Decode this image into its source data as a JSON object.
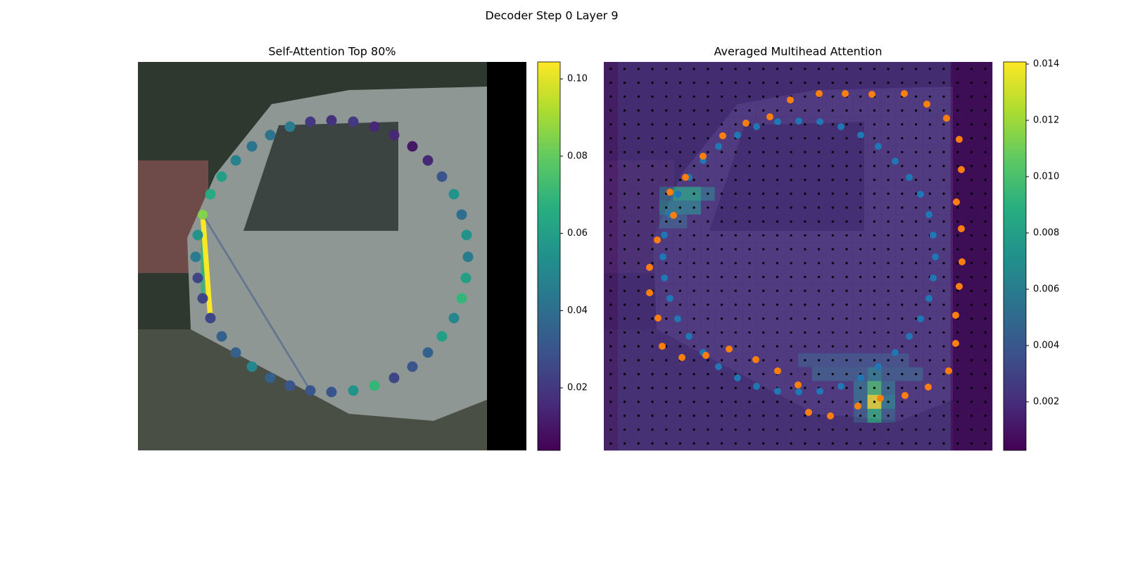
{
  "title": "Decoder Step 0 Layer 9",
  "chart_data": [
    {
      "type": "scatter",
      "title": "Self-Attention Top 80%",
      "xlim": [
        0,
        552
      ],
      "ylim": [
        552,
        0
      ],
      "x": [
        92,
        103,
        119,
        139,
        162,
        188,
        216,
        245,
        275,
        306,
        336,
        364,
        390,
        412,
        432,
        449,
        460,
        467,
        469,
        466,
        460,
        449,
        432,
        412,
        390,
        364,
        336,
        306,
        275,
        245,
        216,
        188,
        162,
        139,
        119,
        103,
        92,
        85,
        82,
        85
      ],
      "y": [
        217,
        188,
        163,
        140,
        120,
        104,
        92,
        85,
        83,
        85,
        92,
        104,
        120,
        140,
        163,
        188,
        217,
        246,
        277,
        307,
        336,
        364,
        390,
        413,
        433,
        449,
        460,
        467,
        469,
        467,
        460,
        449,
        433,
        413,
        390,
        364,
        336,
        307,
        277,
        246
      ],
      "values": [
        0.085,
        0.065,
        0.06,
        0.048,
        0.042,
        0.042,
        0.045,
        0.02,
        0.018,
        0.02,
        0.015,
        0.015,
        0.01,
        0.015,
        0.03,
        0.055,
        0.04,
        0.055,
        0.045,
        0.06,
        0.07,
        0.05,
        0.06,
        0.035,
        0.03,
        0.025,
        0.07,
        0.055,
        0.03,
        0.03,
        0.03,
        0.035,
        0.05,
        0.035,
        0.035,
        0.025,
        0.025,
        0.025,
        0.045,
        0.055
      ],
      "lines": {
        "from": 0,
        "to": [
          36,
          35,
          29
        ],
        "values": [
          0.07,
          0.104,
          0.03
        ]
      },
      "colorbar_lim": [
        0.0038,
        0.1044
      ],
      "colorbar_ticks": [
        0.02,
        0.04,
        0.06,
        0.08,
        {
          "value": 0.1,
          "label": "0.10"
        }
      ]
    },
    {
      "type": "heatmap",
      "title": "Averaged Multihead Attention",
      "xlim": [
        0,
        552
      ],
      "ylim": [
        552,
        0
      ],
      "matrix": [
        [
          0.0012,
          0.002,
          0.002,
          0.002,
          0.002,
          0.002,
          0.002,
          0.002,
          0.002,
          0.002,
          0.002,
          0.002,
          0.002,
          0.002,
          0.002,
          0.002,
          0.002,
          0.002,
          0.002,
          0.002,
          0.002,
          0.002,
          0.002,
          0.002,
          0.002,
          0.0006,
          0.0006,
          0.0006
        ],
        [
          0.0012,
          0.002,
          0.002,
          0.002,
          0.002,
          0.002,
          0.002,
          0.002,
          0.002,
          0.002,
          0.002,
          0.002,
          0.002,
          0.002,
          0.002,
          0.002,
          0.002,
          0.002,
          0.002,
          0.002,
          0.002,
          0.002,
          0.002,
          0.002,
          0.002,
          0.0006,
          0.0006,
          0.0006
        ],
        [
          0.0012,
          0.002,
          0.002,
          0.002,
          0.002,
          0.002,
          0.002,
          0.002,
          0.002,
          0.002,
          0.002,
          0.002,
          0.002,
          0.002,
          0.002,
          0.002,
          0.002,
          0.002,
          0.002,
          0.002,
          0.002,
          0.002,
          0.002,
          0.002,
          0.002,
          0.0006,
          0.0006,
          0.0006
        ],
        [
          0.0012,
          0.002,
          0.002,
          0.002,
          0.002,
          0.002,
          0.002,
          0.002,
          0.002,
          0.002,
          0.002,
          0.002,
          0.002,
          0.002,
          0.002,
          0.002,
          0.002,
          0.002,
          0.002,
          0.002,
          0.002,
          0.002,
          0.002,
          0.002,
          0.002,
          0.0006,
          0.0006,
          0.0006
        ],
        [
          0.0012,
          0.002,
          0.002,
          0.002,
          0.002,
          0.002,
          0.002,
          0.002,
          0.002,
          0.002,
          0.002,
          0.002,
          0.002,
          0.002,
          0.002,
          0.002,
          0.002,
          0.002,
          0.002,
          0.002,
          0.002,
          0.002,
          0.002,
          0.002,
          0.002,
          0.0006,
          0.0006,
          0.0006
        ],
        [
          0.0012,
          0.002,
          0.002,
          0.002,
          0.002,
          0.002,
          0.002,
          0.002,
          0.002,
          0.002,
          0.002,
          0.002,
          0.002,
          0.002,
          0.002,
          0.002,
          0.002,
          0.002,
          0.002,
          0.002,
          0.002,
          0.002,
          0.002,
          0.002,
          0.002,
          0.0006,
          0.0006,
          0.0006
        ],
        [
          0.0012,
          0.002,
          0.002,
          0.002,
          0.002,
          0.002,
          0.002,
          0.002,
          0.002,
          0.002,
          0.002,
          0.002,
          0.002,
          0.002,
          0.002,
          0.002,
          0.002,
          0.002,
          0.002,
          0.002,
          0.002,
          0.002,
          0.002,
          0.002,
          0.002,
          0.0006,
          0.0006,
          0.0006
        ],
        [
          0.0012,
          0.002,
          0.002,
          0.002,
          0.002,
          0.002,
          0.002,
          0.002,
          0.002,
          0.002,
          0.002,
          0.002,
          0.002,
          0.002,
          0.002,
          0.002,
          0.002,
          0.002,
          0.002,
          0.002,
          0.002,
          0.002,
          0.002,
          0.002,
          0.002,
          0.0006,
          0.0006,
          0.0006
        ],
        [
          0.0012,
          0.002,
          0.002,
          0.002,
          0.002,
          0.002,
          0.002,
          0.002,
          0.002,
          0.002,
          0.002,
          0.002,
          0.002,
          0.002,
          0.002,
          0.002,
          0.002,
          0.002,
          0.002,
          0.002,
          0.002,
          0.002,
          0.002,
          0.002,
          0.002,
          0.0006,
          0.0006,
          0.0006
        ],
        [
          0.0012,
          0.002,
          0.002,
          0.002,
          0.005,
          0.008,
          0.008,
          0.005,
          0.002,
          0.002,
          0.002,
          0.002,
          0.002,
          0.002,
          0.002,
          0.002,
          0.002,
          0.002,
          0.002,
          0.002,
          0.002,
          0.002,
          0.002,
          0.002,
          0.002,
          0.0006,
          0.0006,
          0.0006
        ],
        [
          0.0012,
          0.002,
          0.002,
          0.002,
          0.006,
          0.006,
          0.006,
          0.002,
          0.002,
          0.002,
          0.002,
          0.002,
          0.002,
          0.002,
          0.002,
          0.002,
          0.002,
          0.002,
          0.002,
          0.002,
          0.002,
          0.002,
          0.002,
          0.002,
          0.002,
          0.0006,
          0.0006,
          0.0006
        ],
        [
          0.0012,
          0.002,
          0.002,
          0.002,
          0.004,
          0.004,
          0.002,
          0.002,
          0.002,
          0.002,
          0.002,
          0.002,
          0.002,
          0.002,
          0.002,
          0.002,
          0.002,
          0.002,
          0.002,
          0.002,
          0.002,
          0.002,
          0.002,
          0.002,
          0.002,
          0.0006,
          0.0006,
          0.0006
        ],
        [
          0.0012,
          0.002,
          0.002,
          0.002,
          0.002,
          0.002,
          0.002,
          0.002,
          0.002,
          0.002,
          0.002,
          0.002,
          0.002,
          0.002,
          0.002,
          0.002,
          0.002,
          0.002,
          0.002,
          0.002,
          0.002,
          0.002,
          0.002,
          0.002,
          0.002,
          0.0006,
          0.0006,
          0.0006
        ],
        [
          0.0012,
          0.002,
          0.002,
          0.002,
          0.002,
          0.002,
          0.002,
          0.002,
          0.002,
          0.002,
          0.002,
          0.002,
          0.002,
          0.002,
          0.002,
          0.002,
          0.002,
          0.002,
          0.002,
          0.002,
          0.002,
          0.002,
          0.002,
          0.002,
          0.002,
          0.0006,
          0.0006,
          0.0006
        ],
        [
          0.0012,
          0.002,
          0.002,
          0.002,
          0.002,
          0.002,
          0.002,
          0.002,
          0.002,
          0.002,
          0.002,
          0.002,
          0.002,
          0.002,
          0.002,
          0.002,
          0.002,
          0.002,
          0.002,
          0.002,
          0.002,
          0.002,
          0.002,
          0.002,
          0.002,
          0.0006,
          0.0006,
          0.0006
        ],
        [
          0.0012,
          0.002,
          0.002,
          0.002,
          0.002,
          0.002,
          0.002,
          0.002,
          0.002,
          0.002,
          0.002,
          0.002,
          0.002,
          0.002,
          0.002,
          0.002,
          0.002,
          0.002,
          0.002,
          0.002,
          0.002,
          0.002,
          0.002,
          0.002,
          0.002,
          0.0006,
          0.0006,
          0.0006
        ],
        [
          0.0012,
          0.002,
          0.002,
          0.002,
          0.002,
          0.002,
          0.002,
          0.002,
          0.002,
          0.002,
          0.002,
          0.002,
          0.002,
          0.002,
          0.002,
          0.002,
          0.002,
          0.002,
          0.002,
          0.002,
          0.002,
          0.002,
          0.002,
          0.002,
          0.002,
          0.0006,
          0.0006,
          0.0006
        ],
        [
          0.0012,
          0.002,
          0.002,
          0.002,
          0.002,
          0.002,
          0.002,
          0.002,
          0.002,
          0.002,
          0.002,
          0.002,
          0.002,
          0.002,
          0.002,
          0.002,
          0.002,
          0.002,
          0.002,
          0.002,
          0.002,
          0.002,
          0.002,
          0.002,
          0.002,
          0.0006,
          0.0006,
          0.0006
        ],
        [
          0.0012,
          0.002,
          0.002,
          0.002,
          0.002,
          0.002,
          0.002,
          0.002,
          0.002,
          0.002,
          0.002,
          0.002,
          0.002,
          0.002,
          0.002,
          0.002,
          0.002,
          0.002,
          0.002,
          0.002,
          0.002,
          0.002,
          0.002,
          0.002,
          0.002,
          0.0006,
          0.0006,
          0.0006
        ],
        [
          0.0012,
          0.002,
          0.002,
          0.002,
          0.002,
          0.002,
          0.002,
          0.002,
          0.002,
          0.002,
          0.002,
          0.002,
          0.002,
          0.002,
          0.002,
          0.002,
          0.002,
          0.002,
          0.002,
          0.002,
          0.002,
          0.002,
          0.002,
          0.002,
          0.002,
          0.0006,
          0.0006,
          0.0006
        ],
        [
          0.0012,
          0.002,
          0.002,
          0.002,
          0.002,
          0.002,
          0.002,
          0.002,
          0.002,
          0.002,
          0.002,
          0.002,
          0.002,
          0.002,
          0.002,
          0.002,
          0.002,
          0.002,
          0.002,
          0.002,
          0.002,
          0.002,
          0.002,
          0.002,
          0.002,
          0.0006,
          0.0006,
          0.0006
        ],
        [
          0.0012,
          0.002,
          0.002,
          0.002,
          0.002,
          0.002,
          0.002,
          0.002,
          0.002,
          0.002,
          0.002,
          0.002,
          0.002,
          0.002,
          0.0035,
          0.0035,
          0.0035,
          0.0035,
          0.0035,
          0.0035,
          0.0035,
          0.0035,
          0.002,
          0.002,
          0.002,
          0.0006,
          0.0006,
          0.0006
        ],
        [
          0.0012,
          0.002,
          0.002,
          0.002,
          0.002,
          0.002,
          0.002,
          0.002,
          0.002,
          0.002,
          0.002,
          0.002,
          0.002,
          0.002,
          0.002,
          0.004,
          0.004,
          0.004,
          0.004,
          0.006,
          0.004,
          0.004,
          0.004,
          0.002,
          0.002,
          0.0006,
          0.0006,
          0.0006
        ],
        [
          0.0012,
          0.002,
          0.002,
          0.002,
          0.002,
          0.002,
          0.002,
          0.002,
          0.002,
          0.002,
          0.002,
          0.002,
          0.002,
          0.002,
          0.002,
          0.002,
          0.002,
          0.002,
          0.005,
          0.01,
          0.005,
          0.002,
          0.002,
          0.002,
          0.002,
          0.0006,
          0.0006,
          0.0006
        ],
        [
          0.0012,
          0.002,
          0.002,
          0.002,
          0.002,
          0.002,
          0.002,
          0.002,
          0.002,
          0.002,
          0.002,
          0.002,
          0.002,
          0.002,
          0.002,
          0.002,
          0.002,
          0.002,
          0.005,
          0.014,
          0.006,
          0.002,
          0.002,
          0.002,
          0.002,
          0.0006,
          0.0006,
          0.0006
        ],
        [
          0.0012,
          0.002,
          0.002,
          0.002,
          0.002,
          0.002,
          0.002,
          0.002,
          0.002,
          0.002,
          0.002,
          0.002,
          0.002,
          0.002,
          0.002,
          0.002,
          0.002,
          0.002,
          0.004,
          0.009,
          0.004,
          0.002,
          0.002,
          0.002,
          0.002,
          0.0006,
          0.0006,
          0.0006
        ],
        [
          0.0012,
          0.002,
          0.002,
          0.002,
          0.002,
          0.002,
          0.002,
          0.002,
          0.002,
          0.002,
          0.002,
          0.002,
          0.002,
          0.002,
          0.002,
          0.002,
          0.002,
          0.002,
          0.002,
          0.002,
          0.002,
          0.002,
          0.002,
          0.002,
          0.002,
          0.0006,
          0.0006,
          0.0006
        ],
        [
          0.0012,
          0.002,
          0.002,
          0.002,
          0.002,
          0.002,
          0.002,
          0.002,
          0.002,
          0.002,
          0.002,
          0.002,
          0.002,
          0.002,
          0.002,
          0.002,
          0.002,
          0.002,
          0.002,
          0.002,
          0.002,
          0.002,
          0.002,
          0.002,
          0.002,
          0.0006,
          0.0006,
          0.0006
        ]
      ],
      "series": [
        {
          "color": "#1f77b4",
          "x": [
            190,
            217,
            247,
            277,
            307,
            337,
            365,
            390,
            414,
            434,
            450,
            462,
            468,
            471,
            468,
            462,
            450,
            434,
            414,
            390,
            365,
            337,
            307,
            277,
            247,
            217,
            190,
            163,
            141,
            121,
            105,
            94,
            86,
            84,
            86,
            94,
            105,
            121,
            141,
            163
          ],
          "y": [
            104,
            92,
            85,
            84,
            85,
            92,
            104,
            120,
            141,
            164,
            188,
            217,
            246,
            277,
            307,
            336,
            365,
            390,
            413,
            433,
            449,
            461,
            468,
            469,
            468,
            461,
            449,
            433,
            413,
            390,
            365,
            336,
            307,
            277,
            246,
            217,
            188,
            164,
            140,
            120
          ]
        },
        {
          "color": "#ff7f0e",
          "x": [
            265,
            306,
            343,
            381,
            427,
            459,
            487,
            505,
            508,
            501,
            508,
            509,
            505,
            500,
            500,
            490,
            461,
            428,
            393,
            361,
            322,
            291,
            276,
            247,
            216,
            178,
            145,
            111,
            83,
            77,
            65,
            65,
            76,
            99,
            94,
            116,
            141,
            169,
            202,
            236
          ],
          "y": [
            54,
            45,
            45,
            46,
            45,
            60,
            80,
            110,
            153,
            199,
            237,
            284,
            319,
            360,
            400,
            439,
            462,
            474,
            478,
            489,
            503,
            498,
            459,
            439,
            423,
            408,
            417,
            420,
            404,
            364,
            328,
            292,
            253,
            218,
            185,
            164,
            134,
            105,
            87,
            78
          ]
        }
      ],
      "colorbar_lim": [
        0.000275,
        0.014075
      ],
      "colorbar_ticks": [
        0.002,
        0.004,
        0.006,
        0.008,
        {
          "value": 0.01,
          "label": "0.010"
        },
        0.012,
        0.014
      ]
    }
  ]
}
